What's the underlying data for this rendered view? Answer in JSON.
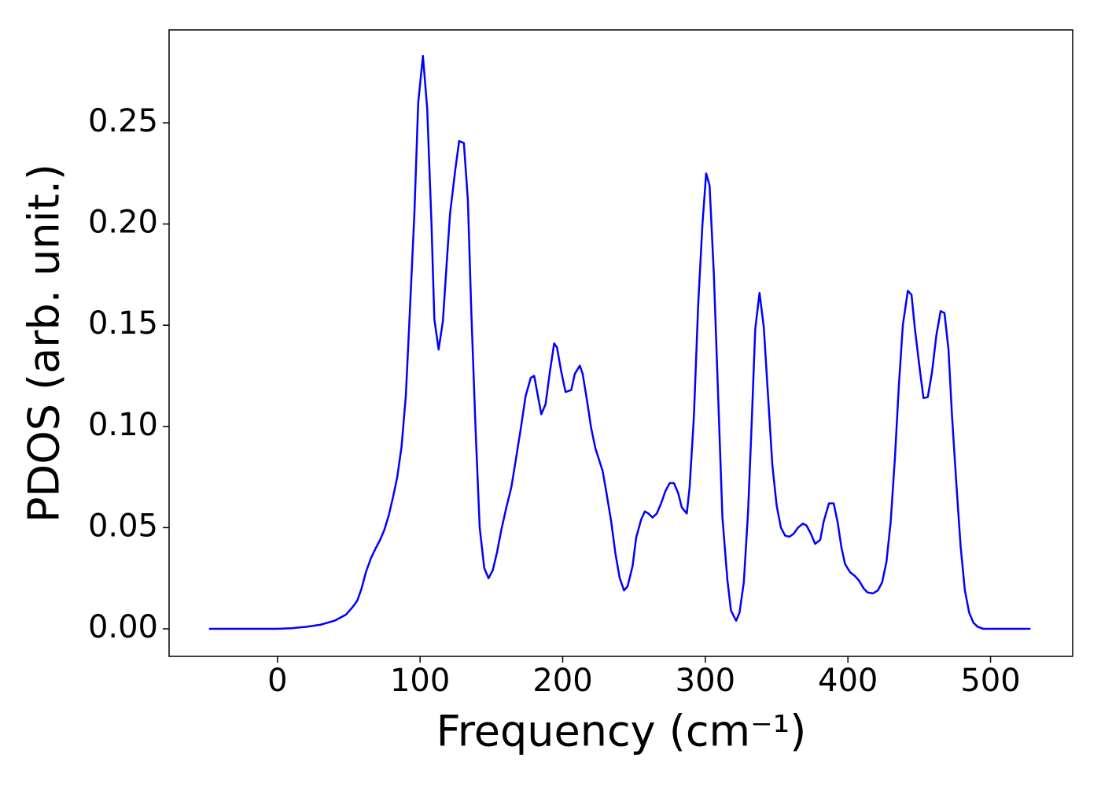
{
  "chart_data": {
    "type": "line",
    "x_label": "Frequency (cm⁻¹)",
    "y_label": "PDOS (arb. unit.)",
    "xlim": [
      -76,
      557.6
    ],
    "ylim": [
      -0.0136,
      0.2959
    ],
    "xticks": [
      0,
      100,
      200,
      300,
      400,
      500
    ],
    "yticks": [
      {
        "value": 0,
        "label": "0.00"
      },
      {
        "value": 0.05,
        "label": "0.05"
      },
      {
        "value": 0.1,
        "label": "0.10"
      },
      {
        "value": 0.15,
        "label": "0.15"
      },
      {
        "value": 0.2,
        "label": "0.20"
      },
      {
        "value": 0.25,
        "label": "0.25"
      }
    ],
    "series": [
      {
        "color": "#0000ff",
        "x": [
          -48,
          0,
          10,
          20,
          30,
          40,
          48,
          53,
          56,
          59,
          62,
          65.6,
          69,
          72,
          75,
          78,
          81,
          84,
          87,
          90,
          92.7,
          96,
          98.7,
          102,
          105,
          108,
          110,
          113,
          116,
          118.6,
          121,
          124.7,
          127.4,
          130.7,
          133.5,
          136,
          139,
          141.8,
          145,
          148,
          151,
          154,
          157,
          160.5,
          164,
          167,
          170.4,
          174,
          177.6,
          180,
          185,
          188,
          191,
          194,
          196,
          199,
          202,
          206,
          208.5,
          212,
          214,
          217,
          220,
          223,
          228,
          230.5,
          234,
          237,
          240,
          243,
          245.5,
          249,
          251.5,
          255,
          257.6,
          260,
          263,
          266,
          269,
          272,
          275,
          278,
          281,
          283.5,
          287,
          289,
          292,
          295,
          298,
          300.6,
          303,
          306,
          309,
          312,
          315.5,
          318,
          321.6,
          324,
          327,
          330,
          332.6,
          335,
          338,
          341,
          344,
          347,
          350,
          353,
          356,
          359,
          362,
          365,
          368.5,
          371,
          374,
          377,
          380.6,
          383,
          386.7,
          390,
          392.7,
          395.5,
          398,
          401.5,
          405,
          407.6,
          411,
          413.7,
          417.5,
          421,
          424,
          427,
          430,
          433,
          435.7,
          438.5,
          442,
          444.6,
          447,
          450.6,
          453,
          456,
          459,
          462,
          465,
          467.7,
          470.5,
          473,
          476,
          479,
          482,
          485,
          488,
          491,
          495,
          528
        ],
        "values": [
          0,
          0,
          0.0003,
          0.001,
          0.002,
          0.004,
          0.007,
          0.011,
          0.014,
          0.02,
          0.028,
          0.035,
          0.04,
          0.044,
          0.049,
          0.056,
          0.065,
          0.075,
          0.09,
          0.115,
          0.155,
          0.205,
          0.26,
          0.283,
          0.257,
          0.2,
          0.153,
          0.138,
          0.152,
          0.18,
          0.205,
          0.227,
          0.241,
          0.24,
          0.212,
          0.155,
          0.097,
          0.05,
          0.03,
          0.025,
          0.029,
          0.038,
          0.049,
          0.06,
          0.07,
          0.083,
          0.098,
          0.115,
          0.124,
          0.125,
          0.106,
          0.111,
          0.127,
          0.141,
          0.139,
          0.127,
          0.117,
          0.118,
          0.126,
          0.13,
          0.126,
          0.113,
          0.099,
          0.089,
          0.078,
          0.068,
          0.053,
          0.037,
          0.025,
          0.019,
          0.021,
          0.031,
          0.045,
          0.054,
          0.058,
          0.057,
          0.055,
          0.057,
          0.062,
          0.068,
          0.072,
          0.072,
          0.067,
          0.06,
          0.057,
          0.07,
          0.105,
          0.16,
          0.2,
          0.225,
          0.219,
          0.175,
          0.115,
          0.055,
          0.024,
          0.009,
          0.004,
          0.008,
          0.023,
          0.058,
          0.103,
          0.148,
          0.166,
          0.149,
          0.115,
          0.081,
          0.061,
          0.05,
          0.046,
          0.0455,
          0.047,
          0.05,
          0.052,
          0.051,
          0.047,
          0.042,
          0.044,
          0.053,
          0.062,
          0.062,
          0.053,
          0.04,
          0.032,
          0.028,
          0.026,
          0.024,
          0.02,
          0.018,
          0.0175,
          0.019,
          0.023,
          0.033,
          0.053,
          0.085,
          0.12,
          0.15,
          0.167,
          0.165,
          0.148,
          0.127,
          0.114,
          0.1145,
          0.127,
          0.145,
          0.157,
          0.156,
          0.138,
          0.105,
          0.072,
          0.041,
          0.019,
          0.008,
          0.003,
          0.001,
          0,
          0
        ]
      }
    ]
  }
}
